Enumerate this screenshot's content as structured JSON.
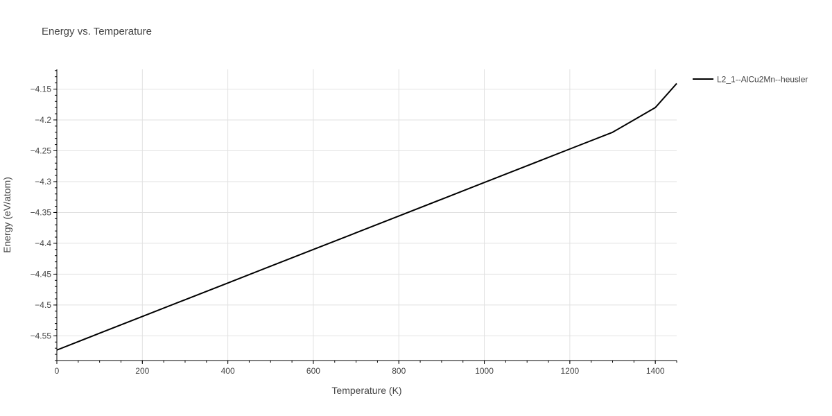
{
  "chart_data": {
    "type": "line",
    "title": "Energy vs. Temperature",
    "xlabel": "Temperature (K)",
    "ylabel": "Energy (eV/atom)",
    "xlim": [
      0,
      1450
    ],
    "ylim": [
      -4.59,
      -4.118
    ],
    "x_ticks": [
      0,
      200,
      400,
      600,
      800,
      1000,
      1200,
      1400
    ],
    "x_tick_labels": [
      "0",
      "200",
      "400",
      "600",
      "800",
      "1000",
      "1200",
      "1400"
    ],
    "y_ticks": [
      -4.55,
      -4.5,
      -4.45,
      -4.4,
      -4.35,
      -4.3,
      -4.25,
      -4.2,
      -4.15
    ],
    "y_tick_labels": [
      "−4.55",
      "−4.5",
      "−4.45",
      "−4.4",
      "−4.35",
      "−4.3",
      "−4.25",
      "−4.2",
      "−4.15"
    ],
    "grid": true,
    "legend_position": "top-right",
    "series": [
      {
        "name": "L2_1--AlCu2Mn--heusler",
        "color": "#000000",
        "x": [
          0,
          100,
          200,
          300,
          400,
          500,
          600,
          700,
          800,
          900,
          1000,
          1100,
          1200,
          1300,
          1350,
          1400,
          1450
        ],
        "y": [
          -4.573,
          -4.5457,
          -4.5186,
          -4.4914,
          -4.4643,
          -4.4371,
          -4.41,
          -4.3829,
          -4.3557,
          -4.3286,
          -4.3014,
          -4.2743,
          -4.2471,
          -4.22,
          -4.2,
          -4.18,
          -4.141
        ]
      }
    ]
  }
}
